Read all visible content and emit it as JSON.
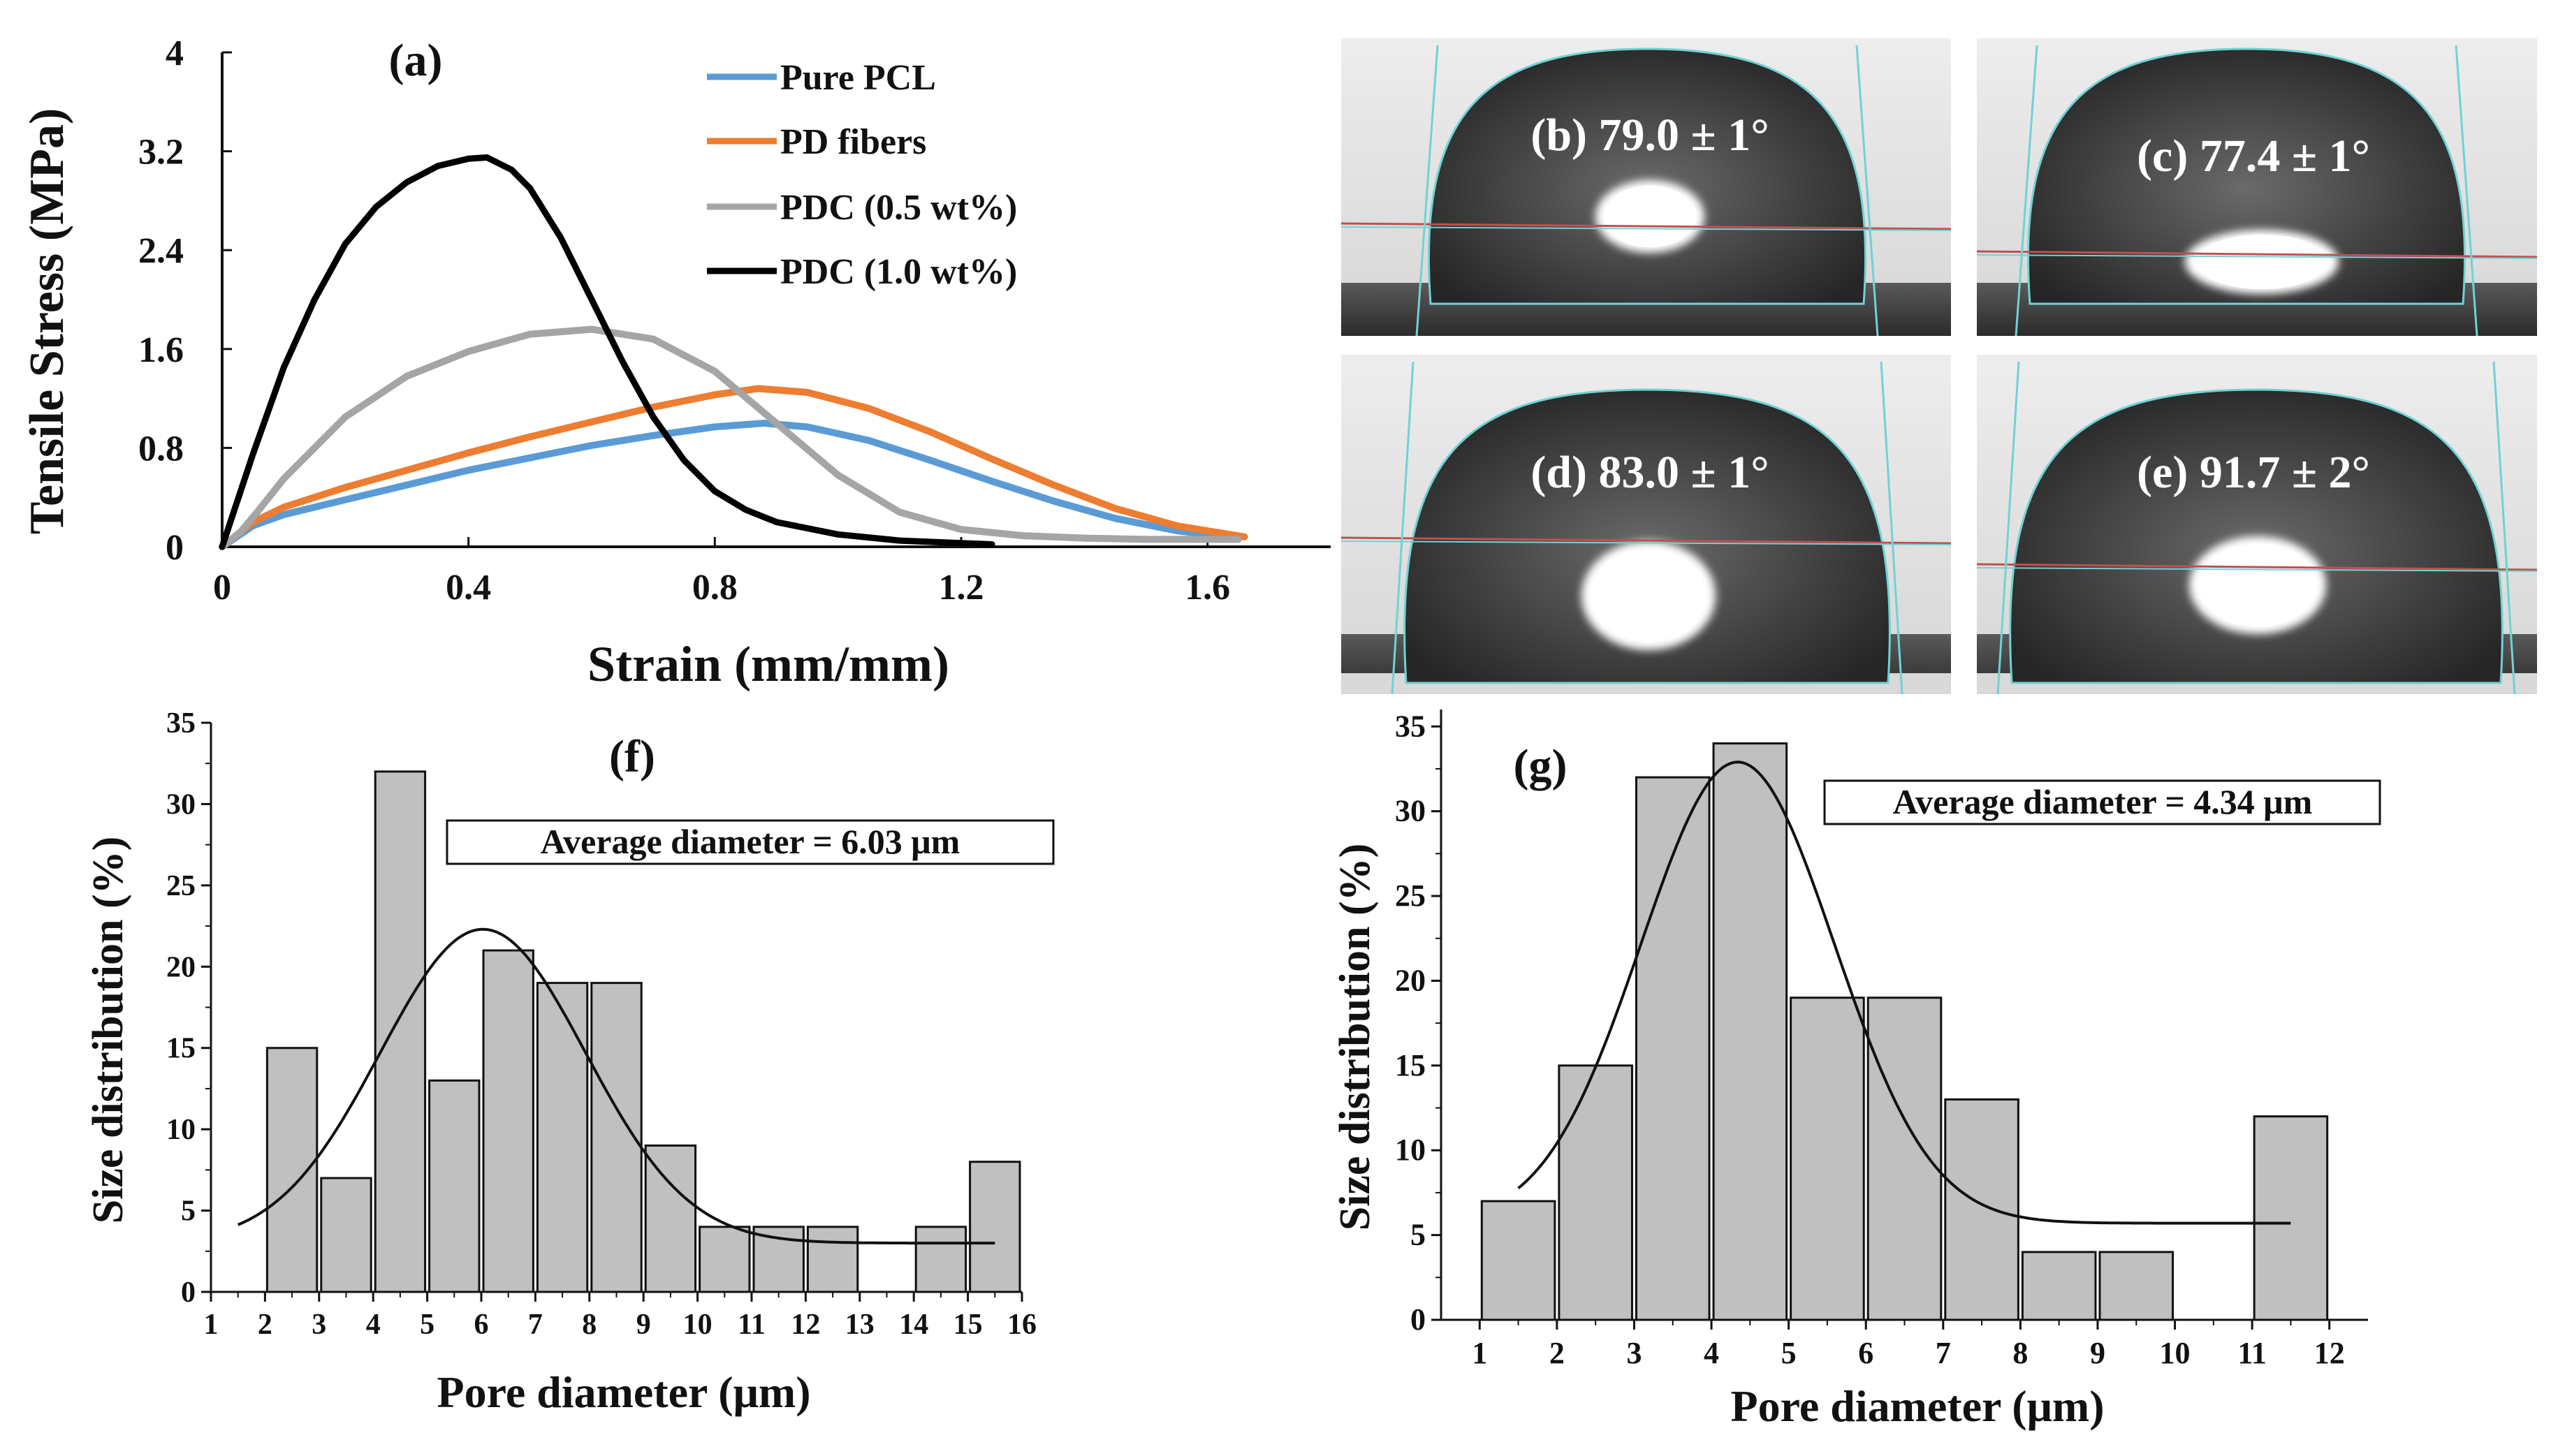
{
  "chart_data": [
    {
      "type": "line",
      "panel": "(a)",
      "title": "",
      "xlabel": "Strain (mm/mm)",
      "ylabel": "Tensile Stress (MPa)",
      "xlim": [
        0,
        1.8
      ],
      "ylim": [
        0,
        4
      ],
      "xticks": [
        0,
        0.4,
        0.8,
        1.2,
        1.6
      ],
      "xtick_labels": [
        "0",
        "0.4",
        "0.8",
        "1.2",
        "1.6"
      ],
      "yticks": [
        0,
        0.8,
        1.6,
        2.4,
        3.2,
        4
      ],
      "ytick_labels": [
        "0",
        "0.8",
        "1.6",
        "2.4",
        "3.2",
        "4"
      ],
      "legend_position": "top-right",
      "series": [
        {
          "name": "Pure PCL",
          "color": "#5b9bd5",
          "x": [
            0,
            0.05,
            0.1,
            0.2,
            0.3,
            0.4,
            0.5,
            0.6,
            0.7,
            0.8,
            0.88,
            0.95,
            1.05,
            1.15,
            1.25,
            1.35,
            1.45,
            1.55,
            1.65
          ],
          "y": [
            0,
            0.17,
            0.26,
            0.38,
            0.5,
            0.62,
            0.72,
            0.82,
            0.9,
            0.97,
            1.0,
            0.97,
            0.86,
            0.7,
            0.53,
            0.37,
            0.23,
            0.13,
            0.07
          ]
        },
        {
          "name": "PD fibers",
          "color": "#ed7d31",
          "x": [
            0,
            0.05,
            0.1,
            0.2,
            0.3,
            0.4,
            0.5,
            0.6,
            0.7,
            0.8,
            0.87,
            0.95,
            1.05,
            1.15,
            1.25,
            1.35,
            1.45,
            1.55,
            1.66
          ],
          "y": [
            0,
            0.2,
            0.32,
            0.48,
            0.62,
            0.76,
            0.89,
            1.01,
            1.13,
            1.23,
            1.28,
            1.25,
            1.12,
            0.93,
            0.71,
            0.5,
            0.31,
            0.17,
            0.08
          ]
        },
        {
          "name": "PDC (0.5 wt%)",
          "color": "#a5a5a5",
          "x": [
            0,
            0.03,
            0.06,
            0.1,
            0.2,
            0.3,
            0.4,
            0.5,
            0.6,
            0.7,
            0.8,
            0.9,
            1.0,
            1.1,
            1.2,
            1.3,
            1.4,
            1.5,
            1.65
          ],
          "y": [
            0,
            0.12,
            0.3,
            0.55,
            1.05,
            1.38,
            1.58,
            1.72,
            1.76,
            1.68,
            1.42,
            1.0,
            0.58,
            0.28,
            0.14,
            0.09,
            0.07,
            0.06,
            0.06
          ]
        },
        {
          "name": "PDC (1.0 wt%)",
          "color": "#000000",
          "x": [
            0,
            0.05,
            0.1,
            0.15,
            0.2,
            0.25,
            0.3,
            0.35,
            0.4,
            0.43,
            0.47,
            0.5,
            0.55,
            0.6,
            0.65,
            0.7,
            0.75,
            0.8,
            0.85,
            0.9,
            1.0,
            1.1,
            1.2,
            1.25
          ],
          "y": [
            0,
            0.75,
            1.45,
            2.0,
            2.45,
            2.75,
            2.95,
            3.08,
            3.14,
            3.15,
            3.05,
            2.9,
            2.5,
            2.0,
            1.5,
            1.05,
            0.7,
            0.45,
            0.3,
            0.2,
            0.1,
            0.05,
            0.03,
            0.02
          ]
        }
      ]
    },
    {
      "type": "bar",
      "panel": "(f)",
      "title": "",
      "xlabel": "Pore diameter (μm)",
      "ylabel": "Size distribution (%)",
      "annotation": "Average diameter = 6.03 μm",
      "xlim": [
        1,
        16
      ],
      "ylim": [
        0,
        35
      ],
      "xticks": [
        1,
        2,
        3,
        4,
        5,
        6,
        7,
        8,
        9,
        10,
        11,
        12,
        13,
        14,
        15,
        16
      ],
      "yticks": [
        0,
        5,
        10,
        15,
        20,
        25,
        30,
        35
      ],
      "bars": [
        {
          "x": 2.5,
          "value": 15
        },
        {
          "x": 3.5,
          "value": 7
        },
        {
          "x": 4.5,
          "value": 32
        },
        {
          "x": 5.5,
          "value": 13
        },
        {
          "x": 6.5,
          "value": 21
        },
        {
          "x": 7.5,
          "value": 19
        },
        {
          "x": 8.5,
          "value": 19
        },
        {
          "x": 9.5,
          "value": 9
        },
        {
          "x": 10.5,
          "value": 4
        },
        {
          "x": 11.5,
          "value": 4
        },
        {
          "x": 12.5,
          "value": 4
        },
        {
          "x": 14.5,
          "value": 4
        },
        {
          "x": 15.5,
          "value": 8
        }
      ],
      "fit": {
        "type": "gaussian",
        "baseline": 3,
        "amplitude": 19.3,
        "center": 6.03,
        "sigma": 1.9,
        "x_range": [
          1.5,
          15.5
        ]
      }
    },
    {
      "type": "bar",
      "panel": "(g)",
      "title": "",
      "xlabel": "Pore diameter (μm)",
      "ylabel": "Size distribution (%)",
      "annotation": "Average diameter = 4.34 μm",
      "xlim": [
        0.5,
        12.5
      ],
      "ylim": [
        0,
        36
      ],
      "xticks": [
        1,
        2,
        3,
        4,
        5,
        6,
        7,
        8,
        9,
        10,
        11,
        12
      ],
      "yticks": [
        0,
        5,
        10,
        15,
        20,
        25,
        30,
        35
      ],
      "bars": [
        {
          "x": 1.5,
          "value": 7
        },
        {
          "x": 2.5,
          "value": 15
        },
        {
          "x": 3.5,
          "value": 32
        },
        {
          "x": 4.5,
          "value": 34
        },
        {
          "x": 5.5,
          "value": 19
        },
        {
          "x": 6.5,
          "value": 19
        },
        {
          "x": 7.5,
          "value": 13
        },
        {
          "x": 8.5,
          "value": 4
        },
        {
          "x": 9.5,
          "value": 4
        },
        {
          "x": 11.5,
          "value": 12
        }
      ],
      "fit": {
        "type": "gaussian",
        "baseline": 5.7,
        "amplitude": 27.2,
        "center": 4.34,
        "sigma": 1.25,
        "x_range": [
          1.5,
          11.5
        ]
      }
    }
  ],
  "contact_angles": [
    {
      "label": "(b) 79.0 ± 1°"
    },
    {
      "label": "(c) 77.4 ± 1°"
    },
    {
      "label": "(d) 83.0 ± 1°"
    },
    {
      "label": "(e) 91.7 ± 2°"
    }
  ]
}
